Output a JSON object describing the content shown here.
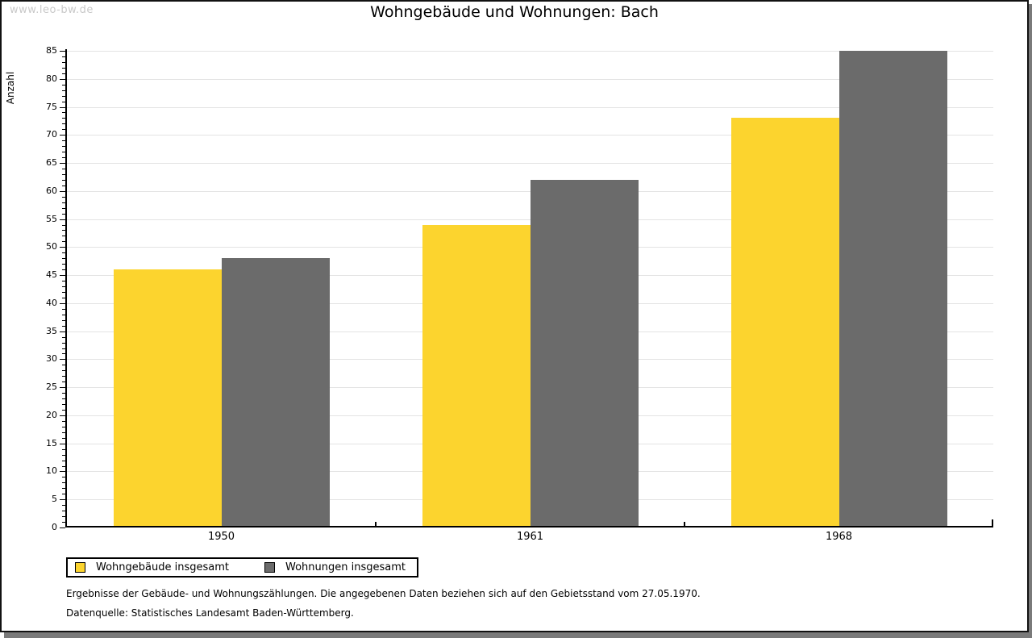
{
  "watermark": "www.leo-bw.de",
  "title": "Wohngebäude und Wohnungen: Bach",
  "chart_data": {
    "type": "bar",
    "title": "Wohngebäude und Wohnungen: Bach",
    "ylabel": "Anzahl",
    "xlabel": "",
    "categories": [
      "1950",
      "1961",
      "1968"
    ],
    "series": [
      {
        "name": "Wohngebäude insgesamt",
        "color": "#FCD42E",
        "values": [
          46,
          54,
          73
        ]
      },
      {
        "name": "Wohnungen insgesamt",
        "color": "#6B6B6B",
        "values": [
          48,
          62,
          85
        ]
      }
    ],
    "ylim": [
      0,
      85
    ],
    "ytick_step": 5,
    "minor_tick_step": 1,
    "grid": true,
    "legend_position": "bottom-left"
  },
  "footnotes": [
    "Ergebnisse der Gebäude- und Wohnungszählungen. Die angegebenen Daten beziehen sich auf den Gebietsstand vom 27.05.1970.",
    "Datenquelle: Statistisches Landesamt Baden-Württemberg."
  ]
}
